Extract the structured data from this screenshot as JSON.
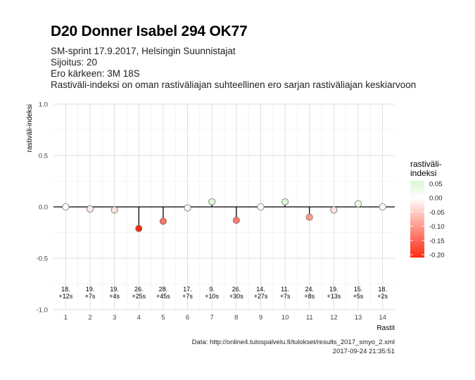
{
  "title": "D20 Donner Isabel 294 OK77",
  "subtitle_lines": [
    "SM-sprint 17.9.2017, Helsingin Suunnistajat",
    "Sijoitus: 20",
    "Ero kärkeen: 3M 18S",
    "Rastiväli-indeksi on oman rastiväliajan suhteellinen ero sarjan rastiväliajan keskiarvoon"
  ],
  "caption_lines": [
    "Data: http://online4.tulospalvelu.fi/tulokset/results_2017_smyo_2.xml",
    "2017-09-24 21:35:51"
  ],
  "chart_data": {
    "type": "scatter",
    "xlabel": "Rastit",
    "ylabel": "rastiväli-indeksi",
    "xlim": [
      0.5,
      14.5
    ],
    "ylim": [
      -1.0,
      1.0
    ],
    "x_ticks": [
      1,
      2,
      3,
      4,
      5,
      6,
      7,
      8,
      9,
      10,
      11,
      12,
      13,
      14
    ],
    "y_ticks": [
      -1.0,
      -0.5,
      0.0,
      0.5,
      1.0
    ],
    "y_tick_labels": [
      "-1.0",
      "-0.5",
      "0.0",
      "0.5",
      "1.0"
    ],
    "grid": true,
    "x": [
      1,
      2,
      3,
      4,
      5,
      6,
      7,
      8,
      9,
      10,
      11,
      12,
      13,
      14
    ],
    "values": [
      0.0,
      -0.02,
      -0.03,
      -0.21,
      -0.14,
      -0.01,
      0.05,
      -0.13,
      0.0,
      0.05,
      -0.1,
      -0.03,
      0.03,
      0.0
    ],
    "point_labels": [
      [
        "18.",
        "+12s"
      ],
      [
        "19.",
        "+7s"
      ],
      [
        "19.",
        "+4s"
      ],
      [
        "26.",
        "+25s"
      ],
      [
        "28.",
        "+45s"
      ],
      [
        "17.",
        "+7s"
      ],
      [
        "9.",
        "+10s"
      ],
      [
        "26.",
        "+30s"
      ],
      [
        "14.",
        "+27s"
      ],
      [
        "11.",
        "+7s"
      ],
      [
        "24.",
        "+8s"
      ],
      [
        "19.",
        "+13s"
      ],
      [
        "15.",
        "+5s"
      ],
      [
        "18.",
        "+2s"
      ]
    ],
    "legend": {
      "title_lines": [
        "rastiväli-",
        "indeksi"
      ],
      "position": "right",
      "range": [
        -0.21,
        0.06
      ],
      "ticks": [
        0.05,
        0.0,
        -0.05,
        -0.1,
        -0.15,
        -0.2
      ],
      "tick_labels": [
        "0.05",
        "0.00",
        "-0.05",
        "-0.10",
        "-0.15",
        "-0.20"
      ],
      "colors": {
        "low": "#ff2a10",
        "mid": "#ffffff",
        "high": "#d8f7d0"
      }
    }
  }
}
